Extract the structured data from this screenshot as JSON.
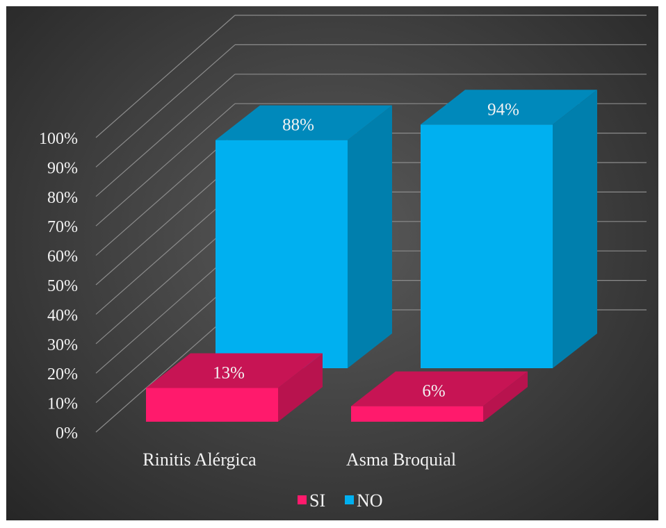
{
  "chart_data": {
    "type": "bar",
    "title": "",
    "categories": [
      "Rinitis Alérgica",
      "Asma Broquial"
    ],
    "series": [
      {
        "name": "SI",
        "values": [
          13,
          6
        ],
        "labels": [
          "13%",
          "6%"
        ],
        "color": "#ff1a6c"
      },
      {
        "name": "NO",
        "values": [
          88,
          94
        ],
        "labels": [
          "88%",
          "94%"
        ],
        "color": "#00b0f0"
      }
    ],
    "y_ticks": [
      "0%",
      "10%",
      "20%",
      "30%",
      "40%",
      "50%",
      "60%",
      "70%",
      "80%",
      "90%",
      "100%"
    ],
    "ylim": [
      0,
      100
    ],
    "grid": true,
    "legend": {
      "position": "bottom",
      "entries": [
        "SI",
        "NO"
      ]
    },
    "style": "3d-clustered-columns"
  }
}
